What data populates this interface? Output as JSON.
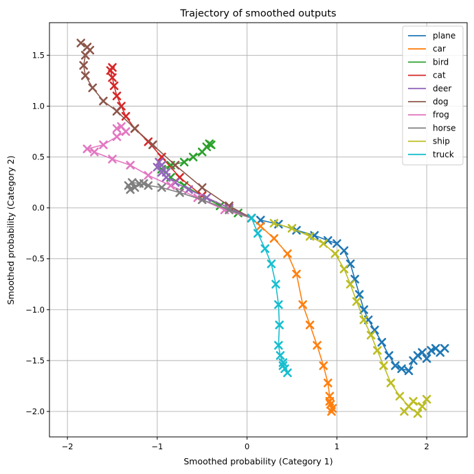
{
  "chart_data": {
    "type": "line",
    "title": "Trajectory of smoothed outputs",
    "xlabel": "Smoothed probability (Category 1)",
    "ylabel": "Smoothed probability (Category 2)",
    "xlim": [
      -2.2,
      2.45
    ],
    "ylim": [
      -2.25,
      1.82
    ],
    "xticks": [
      -2,
      -1,
      0,
      1,
      2
    ],
    "xtick_labels": [
      "−2",
      "−1",
      "0",
      "1",
      "2"
    ],
    "yticks": [
      1.5,
      1.0,
      0.5,
      0.0,
      -0.5,
      -1.0,
      -1.5,
      -2.0
    ],
    "ytick_labels": [
      "1.5",
      "1.0",
      "0.5",
      "0.0",
      "−0.5",
      "−1.0",
      "−1.5",
      "−2.0"
    ],
    "grid": true,
    "legend_position": "top-right",
    "marker": "x",
    "series": [
      {
        "name": "plane",
        "color": "#1f77b4",
        "x": [
          0.15,
          0.35,
          0.55,
          0.75,
          0.9,
          1.0,
          1.08,
          1.15,
          1.2,
          1.25,
          1.3,
          1.35,
          1.42,
          1.5,
          1.58,
          1.65,
          1.72,
          1.8,
          1.85,
          1.9,
          1.95,
          2.0,
          2.05,
          2.1,
          2.15,
          2.2
        ],
        "y": [
          -0.12,
          -0.16,
          -0.22,
          -0.27,
          -0.32,
          -0.35,
          -0.42,
          -0.55,
          -0.7,
          -0.85,
          -1.0,
          -1.1,
          -1.2,
          -1.32,
          -1.45,
          -1.55,
          -1.58,
          -1.6,
          -1.5,
          -1.45,
          -1.42,
          -1.48,
          -1.4,
          -1.38,
          -1.42,
          -1.38
        ]
      },
      {
        "name": "car",
        "color": "#ff7f0e",
        "x": [
          0.05,
          0.15,
          0.3,
          0.45,
          0.55,
          0.62,
          0.7,
          0.78,
          0.85,
          0.9,
          0.92,
          0.93,
          0.95,
          0.94,
          0.92
        ],
        "y": [
          -0.1,
          -0.18,
          -0.3,
          -0.45,
          -0.65,
          -0.95,
          -1.15,
          -1.35,
          -1.55,
          -1.72,
          -1.85,
          -1.93,
          -1.97,
          -2.0,
          -1.9
        ]
      },
      {
        "name": "bird",
        "color": "#2ca02c",
        "x": [
          0.05,
          -0.1,
          -0.3,
          -0.5,
          -0.7,
          -0.85,
          -0.95,
          -0.85,
          -0.7,
          -0.6,
          -0.5,
          -0.45,
          -0.42,
          -0.4
        ],
        "y": [
          -0.1,
          -0.05,
          0.02,
          0.12,
          0.22,
          0.3,
          0.38,
          0.42,
          0.45,
          0.5,
          0.55,
          0.6,
          0.63,
          0.62
        ]
      },
      {
        "name": "cat",
        "color": "#d62728",
        "x": [
          0.05,
          -0.2,
          -0.5,
          -0.75,
          -0.95,
          -1.1,
          -1.25,
          -1.35,
          -1.4,
          -1.45,
          -1.48,
          -1.5,
          -1.52,
          -1.5
        ],
        "y": [
          -0.1,
          0.0,
          0.12,
          0.3,
          0.5,
          0.65,
          0.78,
          0.9,
          1.0,
          1.1,
          1.2,
          1.28,
          1.35,
          1.38
        ]
      },
      {
        "name": "deer",
        "color": "#9467bd",
        "x": [
          0.05,
          -0.2,
          -0.45,
          -0.65,
          -0.8,
          -0.9,
          -0.95,
          -1.0,
          -0.98,
          -0.95,
          -0.9
        ],
        "y": [
          -0.1,
          0.0,
          0.1,
          0.18,
          0.25,
          0.3,
          0.35,
          0.4,
          0.45,
          0.42,
          0.35
        ]
      },
      {
        "name": "dog",
        "color": "#8c564b",
        "x": [
          0.05,
          -0.2,
          -0.5,
          -0.8,
          -1.05,
          -1.25,
          -1.45,
          -1.6,
          -1.72,
          -1.8,
          -1.82,
          -1.8,
          -1.75,
          -1.78,
          -1.85
        ],
        "y": [
          -0.1,
          0.02,
          0.2,
          0.42,
          0.62,
          0.78,
          0.95,
          1.05,
          1.18,
          1.3,
          1.4,
          1.5,
          1.55,
          1.58,
          1.62
        ]
      },
      {
        "name": "frog",
        "color": "#e377c2",
        "x": [
          0.05,
          -0.25,
          -0.55,
          -0.85,
          -1.1,
          -1.3,
          -1.5,
          -1.7,
          -1.78,
          -1.6,
          -1.45,
          -1.35,
          -1.4,
          -1.45
        ],
        "y": [
          -0.1,
          -0.02,
          0.1,
          0.22,
          0.32,
          0.42,
          0.48,
          0.55,
          0.58,
          0.62,
          0.7,
          0.75,
          0.8,
          0.78
        ]
      },
      {
        "name": "horse",
        "color": "#7f7f7f",
        "x": [
          0.05,
          -0.2,
          -0.5,
          -0.75,
          -0.95,
          -1.1,
          -1.2,
          -1.28,
          -1.32,
          -1.3,
          -1.25,
          -1.15
        ],
        "y": [
          -0.1,
          -0.02,
          0.08,
          0.15,
          0.2,
          0.22,
          0.24,
          0.25,
          0.22,
          0.18,
          0.2,
          0.24
        ]
      },
      {
        "name": "ship",
        "color": "#bcbd22",
        "x": [
          0.3,
          0.5,
          0.7,
          0.85,
          0.98,
          1.08,
          1.15,
          1.22,
          1.3,
          1.38,
          1.45,
          1.52,
          1.6,
          1.7,
          1.8,
          1.9,
          2.0,
          1.95,
          1.85,
          1.75
        ],
        "y": [
          -0.15,
          -0.2,
          -0.28,
          -0.35,
          -0.45,
          -0.6,
          -0.75,
          -0.92,
          -1.1,
          -1.25,
          -1.4,
          -1.55,
          -1.72,
          -1.85,
          -1.95,
          -2.02,
          -1.88,
          -1.95,
          -1.9,
          -2.0
        ]
      },
      {
        "name": "truck",
        "color": "#17becf",
        "x": [
          0.05,
          0.12,
          0.2,
          0.27,
          0.32,
          0.35,
          0.36,
          0.35,
          0.37,
          0.4,
          0.42,
          0.45,
          0.4
        ],
        "y": [
          -0.1,
          -0.25,
          -0.4,
          -0.55,
          -0.75,
          -0.95,
          -1.15,
          -1.35,
          -1.45,
          -1.52,
          -1.58,
          -1.62,
          -1.55
        ]
      }
    ]
  }
}
